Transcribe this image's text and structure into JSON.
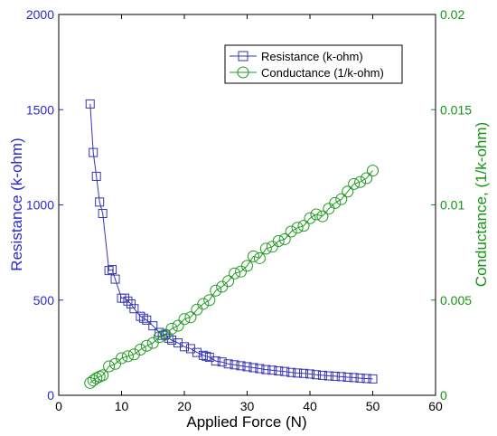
{
  "chart_data": {
    "type": "line",
    "xlabel": "Applied Force (N)",
    "xlim": [
      0,
      60
    ],
    "xticks": [
      0,
      10,
      20,
      30,
      40,
      50,
      60
    ],
    "ylabel_left": "Resistance (k-ohm)",
    "ylim_left": [
      0,
      2000
    ],
    "yticks_left": [
      0,
      500,
      1000,
      1500,
      2000
    ],
    "ylabel_right": "Conductance, (1/k-ohm)",
    "ylim_right": [
      0,
      0.02
    ],
    "yticks_right": [
      "0",
      "0.005",
      "0.01",
      "0.015",
      "0.02"
    ],
    "yticks_right_values": [
      0,
      0.005,
      0.01,
      0.015,
      0.02
    ],
    "grid": false,
    "legend_position": "top-right",
    "colors": {
      "resistance": "#3535b5",
      "conductance": "#1f9a1f",
      "left_axis": "#2a2ac8",
      "right_axis": "#149614"
    },
    "series": [
      {
        "name": "Resistance (k-ohm)",
        "axis": "left",
        "marker": "square",
        "x": [
          5,
          5.5,
          6,
          6.5,
          7,
          8,
          8.5,
          9,
          10,
          10.5,
          11,
          11.5,
          12,
          13,
          13.5,
          14,
          15,
          16,
          16.5,
          17,
          17.5,
          18,
          19,
          20,
          21,
          22,
          23,
          23.5,
          24,
          25,
          26,
          27,
          28,
          29,
          30,
          31,
          32,
          33,
          34,
          35,
          36,
          37,
          38,
          39,
          40,
          41,
          42,
          43,
          44,
          45,
          46,
          47,
          48,
          49,
          50
        ],
        "y": [
          1530,
          1275,
          1150,
          1015,
          955,
          655,
          660,
          610,
          510,
          510,
          495,
          480,
          455,
          415,
          405,
          395,
          365,
          330,
          315,
          320,
          300,
          290,
          275,
          255,
          245,
          225,
          210,
          205,
          200,
          180,
          175,
          165,
          160,
          155,
          150,
          145,
          140,
          135,
          132,
          128,
          125,
          120,
          117,
          115,
          112,
          108,
          105,
          102,
          100,
          98,
          95,
          93,
          90,
          88,
          86
        ]
      },
      {
        "name": "Conductance (1/k-ohm)",
        "axis": "right",
        "marker": "circle",
        "x": [
          5,
          5.5,
          6,
          6.5,
          7,
          8,
          9,
          10,
          11,
          12,
          13,
          14,
          15,
          16,
          17,
          18,
          19,
          20,
          21,
          22,
          23,
          24,
          25,
          26,
          27,
          28,
          29,
          30,
          31,
          32,
          33,
          34,
          35,
          36,
          37,
          38,
          39,
          40,
          41,
          42,
          43,
          44,
          45,
          46,
          47,
          48,
          49,
          50
        ],
        "y": [
          0.00065,
          0.00078,
          0.0009,
          0.00098,
          0.00105,
          0.00152,
          0.00165,
          0.00195,
          0.00205,
          0.00215,
          0.0024,
          0.0026,
          0.00275,
          0.00305,
          0.00318,
          0.0035,
          0.00365,
          0.004,
          0.0041,
          0.0045,
          0.0048,
          0.005,
          0.0055,
          0.0057,
          0.006,
          0.0064,
          0.0065,
          0.0068,
          0.0073,
          0.0072,
          0.0077,
          0.0078,
          0.0081,
          0.0082,
          0.0086,
          0.0088,
          0.0089,
          0.0093,
          0.0095,
          0.0094,
          0.0098,
          0.0101,
          0.0103,
          0.0107,
          0.0111,
          0.0112,
          0.0114,
          0.0118
        ]
      }
    ]
  }
}
